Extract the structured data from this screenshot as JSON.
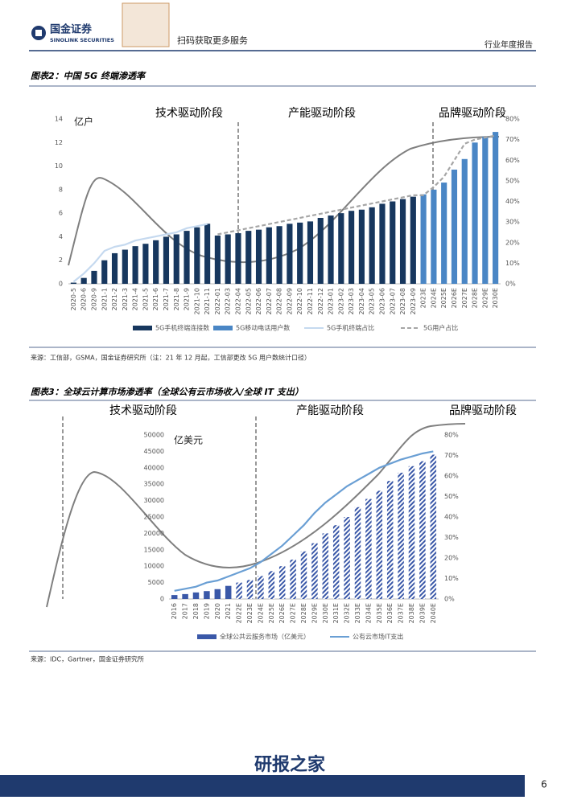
{
  "header": {
    "logo": "国金证券",
    "logo_en": "SINOLINK SECURITIES",
    "qr_caption": "扫码获取更多服务",
    "report_type": "行业年度报告"
  },
  "chart_data": [
    {
      "type": "bar",
      "title": "图表2：中国 5G 终端渗透率",
      "ylabel": "亿户",
      "annotations": [
        "技术驱动阶段",
        "产能驱动阶段",
        "品牌驱动阶段"
      ],
      "categories": [
        "2020-5",
        "2020-6",
        "2020-9",
        "2021-1",
        "2021-2",
        "2021-3",
        "2021-4",
        "2021-5",
        "2021-6",
        "2021-7",
        "2021-8",
        "2021-9",
        "2021-10",
        "2021-11",
        "2022-01",
        "2022-03",
        "2022-04",
        "2022-05",
        "2022-06",
        "2022-07",
        "2022-08",
        "2022-09",
        "2022-10",
        "2022-11",
        "2022-12",
        "2023-01",
        "2023-02",
        "2023-03",
        "2023-04",
        "2023-05",
        "2023-06",
        "2023-07",
        "2023-08",
        "2023-09",
        "2023E",
        "2024E",
        "2025E",
        "2026E",
        "2027E",
        "2028E",
        "2029E",
        "2030E"
      ],
      "series": [
        {
          "name": "5G手机终端连接数",
          "type": "bar",
          "color": "#17375e",
          "values": [
            0.1,
            0.5,
            1.1,
            2.0,
            2.6,
            2.9,
            3.2,
            3.4,
            3.7,
            4.0,
            4.2,
            4.5,
            4.8,
            5.1,
            4.1,
            4.2,
            4.3,
            4.5,
            4.6,
            4.8,
            4.9,
            5.1,
            5.2,
            5.3,
            5.6,
            5.8,
            6.0,
            6.2,
            6.3,
            6.5,
            6.8,
            7.0,
            7.2,
            7.4,
            null,
            null,
            null,
            null,
            null,
            null,
            null,
            null
          ]
        },
        {
          "name": "5G移动电话用户数",
          "type": "bar",
          "color": "#4a86c5",
          "values": [
            null,
            null,
            null,
            null,
            null,
            null,
            null,
            null,
            null,
            null,
            null,
            null,
            null,
            null,
            null,
            null,
            null,
            null,
            null,
            null,
            null,
            null,
            null,
            null,
            null,
            null,
            null,
            null,
            null,
            null,
            null,
            null,
            null,
            null,
            7.6,
            8.0,
            8.6,
            9.7,
            10.6,
            12.0,
            12.5,
            12.9
          ]
        },
        {
          "name": "5G手机终端占比",
          "type": "line",
          "axis": "y2",
          "color": "#c5d9ef",
          "dash": false,
          "values": [
            1,
            5,
            10,
            16,
            18,
            19,
            21,
            22,
            23,
            24,
            25,
            27,
            28,
            29,
            null,
            null,
            null,
            null,
            null,
            null,
            null,
            null,
            null,
            null,
            null,
            null,
            null,
            null,
            null,
            null,
            null,
            null,
            null,
            null,
            null,
            null,
            null,
            null,
            null,
            null,
            null,
            null
          ]
        },
        {
          "name": "5G用户占比",
          "type": "line",
          "axis": "y2",
          "color": "#a6a6a6",
          "dash": true,
          "values": [
            null,
            null,
            null,
            null,
            null,
            null,
            null,
            null,
            null,
            null,
            null,
            null,
            null,
            null,
            24,
            25,
            26,
            27,
            28,
            29,
            30,
            31,
            32,
            33,
            34,
            35,
            36,
            37,
            38,
            39,
            40,
            41,
            42,
            43,
            43,
            47,
            52,
            60,
            68,
            70,
            71,
            72
          ]
        }
      ],
      "ylim": [
        0,
        14
      ],
      "yticks": [
        0,
        2,
        4,
        6,
        8,
        10,
        12,
        14
      ],
      "y2lim": [
        0,
        80
      ],
      "y2ticks": [
        {
          "value": 0,
          "label": "0%"
        },
        {
          "value": 10,
          "label": "10%"
        },
        {
          "value": 20,
          "label": "20%"
        },
        {
          "value": 30,
          "label": "30%"
        },
        {
          "value": 40,
          "label": "40%"
        },
        {
          "value": 50,
          "label": "50%"
        },
        {
          "value": 60,
          "label": "60%"
        },
        {
          "value": 70,
          "label": "70%"
        },
        {
          "value": 80,
          "label": "80%"
        }
      ],
      "source": "来源：工信部，GSMA，国金证券研究所（注：21 年 12 月起，工信部更改 5G 用户数统计口径）"
    },
    {
      "type": "bar",
      "title": "图表3：全球云计算市场渗透率（全球公有云市场收入/全球 IT 支出）",
      "ylabel": "亿美元",
      "annotations": [
        "技术驱动阶段",
        "产能驱动阶段",
        "品牌驱动阶段"
      ],
      "categories": [
        "2016",
        "2017",
        "2018",
        "2019",
        "2020",
        "2021",
        "2022E",
        "2023E",
        "2024E",
        "2025E",
        "2026E",
        "2027E",
        "2028E",
        "2029E",
        "2030E",
        "2031E",
        "2032E",
        "2033E",
        "2034E",
        "2035E",
        "2036E",
        "2037E",
        "2038E",
        "2039E",
        "2040E"
      ],
      "series": [
        {
          "name": "全球公共云服务市场（亿美元）",
          "type": "bar",
          "color": "#3a58a8",
          "values": [
            1200,
            1500,
            2000,
            2400,
            3000,
            4000,
            5000,
            5800,
            7000,
            8500,
            10000,
            12000,
            14500,
            17000,
            20000,
            22500,
            25000,
            28000,
            30500,
            33000,
            36000,
            38500,
            40500,
            42000,
            44000
          ]
        },
        {
          "name": "公有云市场IT支出",
          "type": "line",
          "axis": "y2",
          "color": "#6a9fd4",
          "dash": false,
          "values": [
            4,
            5,
            6,
            8,
            9,
            11,
            13,
            15,
            18,
            22,
            26,
            31,
            36,
            42,
            47,
            51,
            55,
            58,
            61,
            64,
            66,
            68,
            69.5,
            71,
            72
          ]
        }
      ],
      "ylim": [
        0,
        50000
      ],
      "yticks": [
        0,
        5000,
        10000,
        15000,
        20000,
        25000,
        30000,
        35000,
        40000,
        45000,
        50000
      ],
      "y2lim": [
        0,
        80
      ],
      "y2ticks": [
        {
          "value": 0,
          "label": "0%"
        },
        {
          "value": 10,
          "label": "10%"
        },
        {
          "value": 20,
          "label": "20%"
        },
        {
          "value": 30,
          "label": "30%"
        },
        {
          "value": 40,
          "label": "40%"
        },
        {
          "value": 50,
          "label": "50%"
        },
        {
          "value": 60,
          "label": "60%"
        },
        {
          "value": 70,
          "label": "70%"
        },
        {
          "value": 80,
          "label": "80%"
        }
      ],
      "source": "来源：IDC，Gartner，国金证券研究所"
    }
  ],
  "footer": {
    "watermark": "研报之家",
    "page": "6"
  }
}
